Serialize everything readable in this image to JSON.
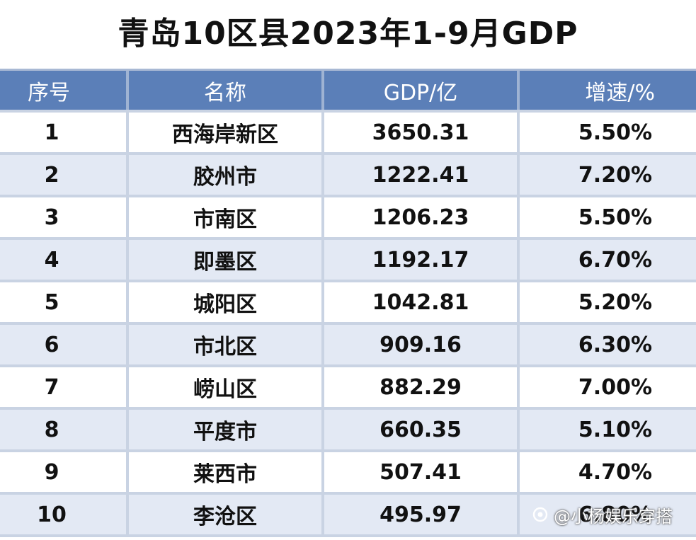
{
  "title": "青岛10区县2023年1-9月GDP",
  "table": {
    "headers": [
      "序号",
      "名称",
      "GDP/亿",
      "增速/%"
    ],
    "rows": [
      {
        "no": "1",
        "name": "西海岸新区",
        "gdp": "3650.31",
        "growth": "5.50%"
      },
      {
        "no": "2",
        "name": "胶州市",
        "gdp": "1222.41",
        "growth": "7.20%"
      },
      {
        "no": "3",
        "name": "市南区",
        "gdp": "1206.23",
        "growth": "5.50%"
      },
      {
        "no": "4",
        "name": "即墨区",
        "gdp": "1192.17",
        "growth": "6.70%"
      },
      {
        "no": "5",
        "name": "城阳区",
        "gdp": "1042.81",
        "growth": "5.20%"
      },
      {
        "no": "6",
        "name": "市北区",
        "gdp": "909.16",
        "growth": "6.30%"
      },
      {
        "no": "7",
        "name": "崂山区",
        "gdp": "882.29",
        "growth": "7.00%"
      },
      {
        "no": "8",
        "name": "平度市",
        "gdp": "660.35",
        "growth": "5.10%"
      },
      {
        "no": "9",
        "name": "莱西市",
        "gdp": "507.41",
        "growth": "4.70%"
      },
      {
        "no": "10",
        "name": "李沧区",
        "gdp": "495.97",
        "growth": "6.80%"
      }
    ]
  },
  "watermark": {
    "icon": "camera-swirl-icon",
    "text": "@小杨娱乐穿搭"
  },
  "colors": {
    "header_bg": "#5b7fb8",
    "row_tint": "#e3e9f4",
    "grid_line": "#c9d3e3"
  }
}
